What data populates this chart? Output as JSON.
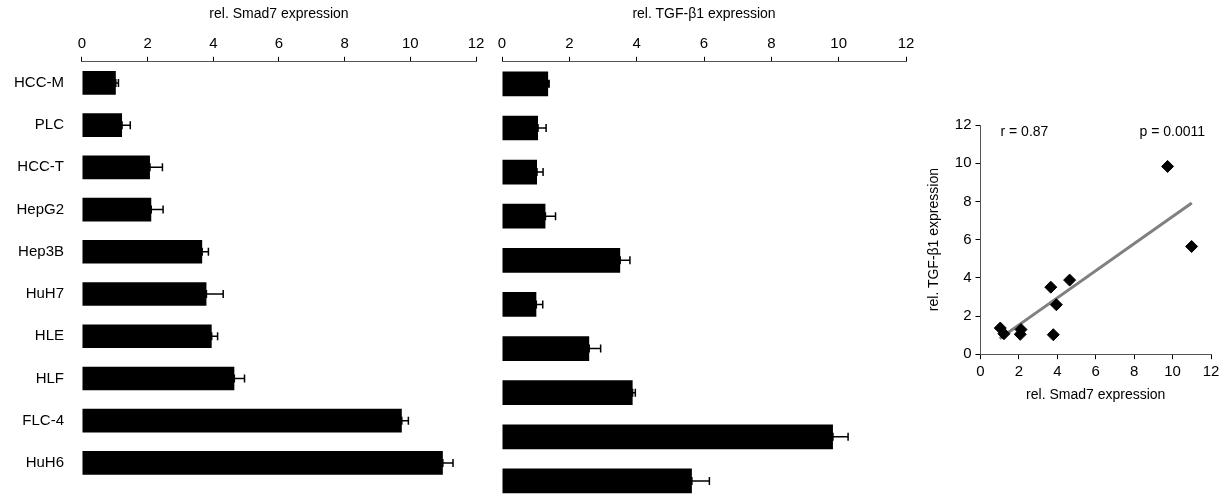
{
  "chart_data": [
    {
      "type": "bar",
      "orientation": "horizontal",
      "xlabel": "rel. Smad7 expression",
      "categories": [
        "HCC-M",
        "PLC",
        "HCC-T",
        "HepG2",
        "Hep3B",
        "HuH7",
        "HLE",
        "HLF",
        "FLC-4",
        "HuH6"
      ],
      "values": [
        1.03,
        1.22,
        2.07,
        2.11,
        3.66,
        3.79,
        3.95,
        4.64,
        9.74,
        10.99
      ],
      "errors": [
        [
          1.03,
          1.11
        ],
        [
          1.22,
          1.47
        ],
        [
          2.07,
          2.45
        ],
        [
          2.11,
          2.47
        ],
        [
          3.66,
          3.85
        ],
        [
          3.79,
          4.3
        ],
        [
          3.95,
          4.13
        ],
        [
          4.64,
          4.95
        ],
        [
          9.74,
          9.94
        ],
        [
          10.99,
          11.3
        ]
      ],
      "color": "#000000",
      "xlim": [
        0,
        12
      ],
      "xticks": [
        0,
        2,
        4,
        6,
        8,
        10,
        12
      ],
      "grid": false,
      "legend": false
    },
    {
      "type": "bar",
      "orientation": "horizontal",
      "xlabel": "rel. TGF-β1 expression",
      "categories": [
        null,
        null,
        null,
        null,
        null,
        null,
        null,
        null,
        null,
        null
      ],
      "values": [
        1.37,
        1.07,
        1.04,
        1.29,
        3.51,
        1.02,
        2.59,
        3.88,
        9.83,
        5.64
      ],
      "errors": [
        [
          1.37,
          1.4
        ],
        [
          1.07,
          1.31
        ],
        [
          1.04,
          1.22
        ],
        [
          1.29,
          1.59
        ],
        [
          3.51,
          3.8
        ],
        [
          1.02,
          1.21
        ],
        [
          2.59,
          2.93
        ],
        [
          3.88,
          3.96
        ],
        [
          9.83,
          10.28
        ],
        [
          5.64,
          6.16
        ]
      ],
      "color": "#000000",
      "xlim": [
        0,
        12
      ],
      "xticks": [
        0,
        2,
        4,
        6,
        8,
        10,
        12
      ],
      "grid": false,
      "legend": false,
      "tick_labels": "x"
    },
    {
      "type": "scatter",
      "xlabel": "rel. Smad7 expression",
      "ylabel": "rel. TGF-β1 expression",
      "annotations": [
        "r = 0.87",
        "p = 0.0011"
      ],
      "series": [
        {
          "type": "scatter",
          "marker": "diamond",
          "color": "#000000",
          "x": [
            1.03,
            1.22,
            2.07,
            2.11,
            3.66,
            3.79,
            3.95,
            4.64,
            9.74,
            10.99
          ],
          "values": [
            1.37,
            1.07,
            1.04,
            1.29,
            3.51,
            1.02,
            2.59,
            3.88,
            9.83,
            5.64
          ]
        },
        {
          "type": "line",
          "marker": "none",
          "color": "#808080",
          "x": [
            1.0,
            11.0
          ],
          "values": [
            0.82,
            7.92
          ]
        }
      ],
      "xlim": [
        0,
        12
      ],
      "xticks": [
        0,
        2,
        4,
        6,
        8,
        10,
        12
      ],
      "ylim": [
        0,
        12
      ],
      "yticks": [
        0,
        2,
        4,
        6,
        8,
        10,
        12
      ],
      "grid": false,
      "legend": false
    }
  ]
}
